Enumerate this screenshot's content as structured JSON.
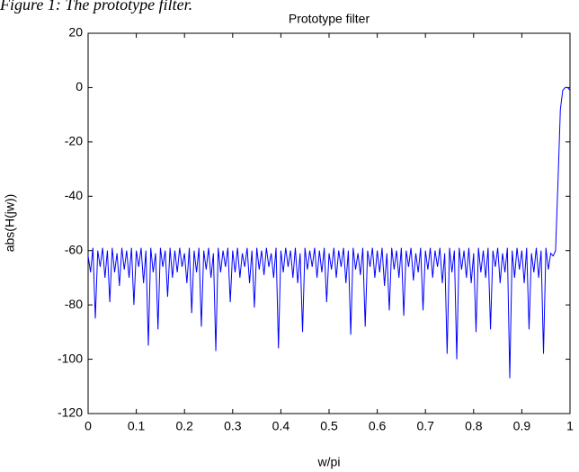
{
  "chart_data": {
    "type": "line",
    "caption": "Figure 1: The prototype filter.",
    "title": "Prototype filter",
    "xlabel": "w/pi",
    "ylabel": "abs(H(jw))",
    "color": "#0000ff",
    "grid": false,
    "xlim": [
      0,
      1
    ],
    "ylim": [
      -120,
      20
    ],
    "xticks": [
      0,
      0.1,
      0.2,
      0.3,
      0.4,
      0.5,
      0.6,
      0.7,
      0.8,
      0.9,
      1
    ],
    "yticks": [
      -120,
      -100,
      -80,
      -60,
      -40,
      -20,
      0,
      20
    ],
    "x": [
      0,
      0.005,
      0.01,
      0.015,
      0.02,
      0.025,
      0.03,
      0.035,
      0.04,
      0.045,
      0.05,
      0.055,
      0.06,
      0.065,
      0.07,
      0.075,
      0.08,
      0.085,
      0.09,
      0.095,
      0.1,
      0.105,
      0.11,
      0.115,
      0.12,
      0.125,
      0.13,
      0.135,
      0.14,
      0.145,
      0.15,
      0.155,
      0.16,
      0.165,
      0.17,
      0.175,
      0.18,
      0.185,
      0.19,
      0.195,
      0.2,
      0.205,
      0.21,
      0.215,
      0.22,
      0.225,
      0.23,
      0.235,
      0.24,
      0.245,
      0.25,
      0.255,
      0.26,
      0.265,
      0.27,
      0.275,
      0.28,
      0.285,
      0.29,
      0.295,
      0.3,
      0.305,
      0.31,
      0.315,
      0.32,
      0.325,
      0.33,
      0.335,
      0.34,
      0.345,
      0.35,
      0.355,
      0.36,
      0.365,
      0.37,
      0.375,
      0.38,
      0.385,
      0.39,
      0.395,
      0.4,
      0.405,
      0.41,
      0.415,
      0.42,
      0.425,
      0.43,
      0.435,
      0.44,
      0.445,
      0.45,
      0.455,
      0.46,
      0.465,
      0.47,
      0.475,
      0.48,
      0.485,
      0.49,
      0.495,
      0.5,
      0.505,
      0.51,
      0.515,
      0.52,
      0.525,
      0.53,
      0.535,
      0.54,
      0.545,
      0.55,
      0.555,
      0.56,
      0.565,
      0.57,
      0.575,
      0.58,
      0.585,
      0.59,
      0.595,
      0.6,
      0.605,
      0.61,
      0.615,
      0.62,
      0.625,
      0.63,
      0.635,
      0.64,
      0.645,
      0.65,
      0.655,
      0.66,
      0.665,
      0.67,
      0.675,
      0.68,
      0.685,
      0.69,
      0.695,
      0.7,
      0.705,
      0.71,
      0.715,
      0.72,
      0.725,
      0.73,
      0.735,
      0.74,
      0.745,
      0.75,
      0.755,
      0.76,
      0.765,
      0.77,
      0.775,
      0.78,
      0.785,
      0.79,
      0.795,
      0.8,
      0.805,
      0.81,
      0.815,
      0.82,
      0.825,
      0.83,
      0.835,
      0.84,
      0.845,
      0.85,
      0.855,
      0.86,
      0.865,
      0.87,
      0.875,
      0.88,
      0.885,
      0.89,
      0.895,
      0.9,
      0.905,
      0.91,
      0.915,
      0.92,
      0.925,
      0.93,
      0.935,
      0.94,
      0.945,
      0.95,
      0.955,
      0.96,
      0.965,
      0.97,
      0.975,
      0.98,
      0.985,
      0.99,
      0.995,
      1
    ],
    "values": [
      -62,
      -68,
      -59,
      -85,
      -60,
      -66,
      -59,
      -70,
      -60,
      -79,
      -59,
      -68,
      -61,
      -73,
      -59,
      -67,
      -60,
      -70,
      -59,
      -80,
      -60,
      -66,
      -59,
      -72,
      -60,
      -95,
      -59,
      -68,
      -61,
      -89,
      -59,
      -66,
      -60,
      -77,
      -59,
      -70,
      -60,
      -68,
      -59,
      -66,
      -61,
      -72,
      -59,
      -83,
      -60,
      -68,
      -59,
      -88,
      -60,
      -67,
      -59,
      -70,
      -61,
      -97,
      -59,
      -68,
      -60,
      -66,
      -59,
      -79,
      -60,
      -68,
      -59,
      -70,
      -61,
      -66,
      -59,
      -72,
      -60,
      -81,
      -59,
      -67,
      -60,
      -69,
      -59,
      -66,
      -61,
      -70,
      -59,
      -96,
      -60,
      -68,
      -59,
      -66,
      -60,
      -70,
      -59,
      -72,
      -61,
      -90,
      -59,
      -67,
      -60,
      -66,
      -59,
      -70,
      -60,
      -68,
      -59,
      -79,
      -61,
      -67,
      -59,
      -70,
      -60,
      -66,
      -59,
      -72,
      -60,
      -91,
      -59,
      -67,
      -61,
      -69,
      -59,
      -88,
      -60,
      -66,
      -59,
      -70,
      -60,
      -68,
      -59,
      -73,
      -61,
      -82,
      -59,
      -67,
      -60,
      -70,
      -59,
      -84,
      -60,
      -66,
      -59,
      -71,
      -61,
      -68,
      -59,
      -82,
      -60,
      -67,
      -59,
      -70,
      -60,
      -66,
      -59,
      -72,
      -61,
      -98,
      -59,
      -68,
      -60,
      -100,
      -59,
      -67,
      -60,
      -70,
      -59,
      -72,
      -61,
      -90,
      -59,
      -68,
      -60,
      -70,
      -59,
      -89,
      -60,
      -66,
      -59,
      -72,
      -61,
      -68,
      -59,
      -107,
      -60,
      -70,
      -59,
      -67,
      -60,
      -72,
      -59,
      -89,
      -61,
      -68,
      -59,
      -70,
      -60,
      -98,
      -59,
      -67,
      -61,
      -62,
      -60,
      -35,
      -8,
      -1,
      0,
      0,
      -1
    ]
  }
}
